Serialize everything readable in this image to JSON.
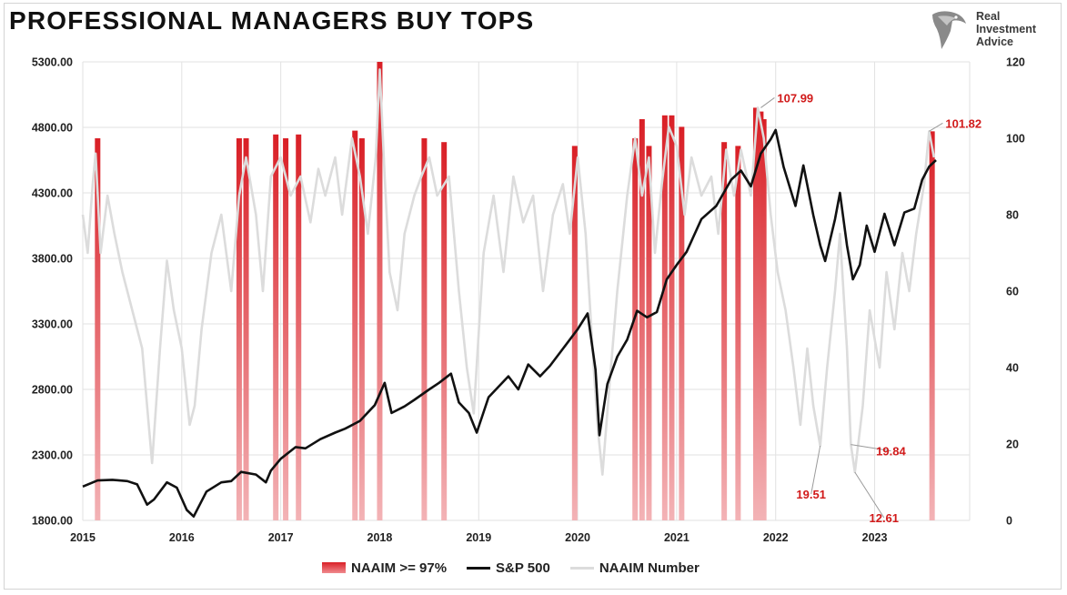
{
  "title": "PROFESSIONAL MANAGERS BUY TOPS",
  "logo": {
    "line1": "Real",
    "line2": "Investment",
    "line3": "Advice"
  },
  "colors": {
    "sp500": "#111111",
    "naaim": "#dcdcdc",
    "highlight": "#e0343a",
    "annotation": "#d11a1a",
    "grid": "#e2e2e2"
  },
  "chart_data": {
    "type": "line",
    "title": "PROFESSIONAL MANAGERS BUY TOPS",
    "x_ticks": [
      "2015",
      "2016",
      "2017",
      "2018",
      "2019",
      "2020",
      "2021",
      "2022",
      "2023"
    ],
    "xlim": [
      "2015-01",
      "2023-12"
    ],
    "left_axis": {
      "ylim": [
        1800,
        5300
      ],
      "ticks": [
        "5300.00",
        "4800.00",
        "4300.00",
        "3800.00",
        "3300.00",
        "2800.00",
        "2300.00",
        "1800.00"
      ]
    },
    "right_axis": {
      "ylim": [
        0,
        120
      ],
      "ticks": [
        "120",
        "100",
        "80",
        "60",
        "40",
        "20",
        "0"
      ]
    },
    "grid": true,
    "legend_position": "bottom",
    "series": [
      {
        "name": "S&P 500",
        "axis": "left",
        "points": [
          [
            2015.0,
            2058
          ],
          [
            2015.15,
            2105
          ],
          [
            2015.3,
            2110
          ],
          [
            2015.45,
            2100
          ],
          [
            2015.55,
            2075
          ],
          [
            2015.65,
            1920
          ],
          [
            2015.72,
            1960
          ],
          [
            2015.85,
            2090
          ],
          [
            2015.95,
            2050
          ],
          [
            2016.05,
            1880
          ],
          [
            2016.12,
            1830
          ],
          [
            2016.25,
            2020
          ],
          [
            2016.4,
            2090
          ],
          [
            2016.5,
            2100
          ],
          [
            2016.6,
            2170
          ],
          [
            2016.75,
            2150
          ],
          [
            2016.85,
            2090
          ],
          [
            2016.9,
            2180
          ],
          [
            2017.0,
            2270
          ],
          [
            2017.15,
            2360
          ],
          [
            2017.25,
            2350
          ],
          [
            2017.4,
            2420
          ],
          [
            2017.55,
            2470
          ],
          [
            2017.65,
            2500
          ],
          [
            2017.8,
            2560
          ],
          [
            2017.95,
            2680
          ],
          [
            2018.05,
            2850
          ],
          [
            2018.12,
            2620
          ],
          [
            2018.25,
            2670
          ],
          [
            2018.35,
            2720
          ],
          [
            2018.5,
            2800
          ],
          [
            2018.6,
            2850
          ],
          [
            2018.72,
            2920
          ],
          [
            2018.8,
            2700
          ],
          [
            2018.9,
            2620
          ],
          [
            2018.98,
            2470
          ],
          [
            2019.1,
            2740
          ],
          [
            2019.3,
            2900
          ],
          [
            2019.4,
            2800
          ],
          [
            2019.5,
            2990
          ],
          [
            2019.62,
            2900
          ],
          [
            2019.72,
            2980
          ],
          [
            2019.85,
            3110
          ],
          [
            2020.0,
            3260
          ],
          [
            2020.1,
            3380
          ],
          [
            2020.18,
            2950
          ],
          [
            2020.22,
            2450
          ],
          [
            2020.3,
            2840
          ],
          [
            2020.4,
            3050
          ],
          [
            2020.5,
            3180
          ],
          [
            2020.6,
            3400
          ],
          [
            2020.7,
            3350
          ],
          [
            2020.8,
            3390
          ],
          [
            2020.9,
            3640
          ],
          [
            2021.0,
            3750
          ],
          [
            2021.1,
            3850
          ],
          [
            2021.25,
            4100
          ],
          [
            2021.4,
            4200
          ],
          [
            2021.55,
            4400
          ],
          [
            2021.65,
            4470
          ],
          [
            2021.75,
            4350
          ],
          [
            2021.85,
            4600
          ],
          [
            2021.95,
            4710
          ],
          [
            2022.0,
            4780
          ],
          [
            2022.08,
            4500
          ],
          [
            2022.2,
            4200
          ],
          [
            2022.28,
            4510
          ],
          [
            2022.38,
            4130
          ],
          [
            2022.45,
            3900
          ],
          [
            2022.5,
            3780
          ],
          [
            2022.6,
            4100
          ],
          [
            2022.65,
            4300
          ],
          [
            2022.72,
            3900
          ],
          [
            2022.78,
            3640
          ],
          [
            2022.85,
            3750
          ],
          [
            2022.92,
            4050
          ],
          [
            2023.0,
            3850
          ],
          [
            2023.1,
            4140
          ],
          [
            2023.2,
            3900
          ],
          [
            2023.3,
            4150
          ],
          [
            2023.4,
            4180
          ],
          [
            2023.48,
            4400
          ],
          [
            2023.55,
            4500
          ],
          [
            2023.62,
            4550
          ]
        ]
      },
      {
        "name": "NAAIM Number",
        "axis": "right",
        "points": [
          [
            2015.0,
            80
          ],
          [
            2015.05,
            70
          ],
          [
            2015.1,
            88
          ],
          [
            2015.13,
            96
          ],
          [
            2015.18,
            70
          ],
          [
            2015.25,
            85
          ],
          [
            2015.32,
            75
          ],
          [
            2015.4,
            65
          ],
          [
            2015.5,
            55
          ],
          [
            2015.6,
            45
          ],
          [
            2015.65,
            30
          ],
          [
            2015.7,
            15
          ],
          [
            2015.78,
            45
          ],
          [
            2015.85,
            68
          ],
          [
            2015.92,
            55
          ],
          [
            2016.0,
            45
          ],
          [
            2016.08,
            25
          ],
          [
            2016.13,
            30
          ],
          [
            2016.2,
            50
          ],
          [
            2016.3,
            70
          ],
          [
            2016.4,
            80
          ],
          [
            2016.5,
            60
          ],
          [
            2016.58,
            85
          ],
          [
            2016.65,
            95
          ],
          [
            2016.75,
            80
          ],
          [
            2016.82,
            60
          ],
          [
            2016.9,
            90
          ],
          [
            2017.0,
            95
          ],
          [
            2017.1,
            85
          ],
          [
            2017.2,
            90
          ],
          [
            2017.3,
            78
          ],
          [
            2017.38,
            92
          ],
          [
            2017.45,
            85
          ],
          [
            2017.55,
            95
          ],
          [
            2017.62,
            80
          ],
          [
            2017.72,
            100
          ],
          [
            2017.8,
            90
          ],
          [
            2017.88,
            75
          ],
          [
            2017.96,
            95
          ],
          [
            2018.0,
            118
          ],
          [
            2018.05,
            90
          ],
          [
            2018.1,
            65
          ],
          [
            2018.18,
            55
          ],
          [
            2018.25,
            75
          ],
          [
            2018.35,
            85
          ],
          [
            2018.42,
            90
          ],
          [
            2018.5,
            95
          ],
          [
            2018.58,
            85
          ],
          [
            2018.7,
            90
          ],
          [
            2018.8,
            60
          ],
          [
            2018.88,
            40
          ],
          [
            2018.95,
            28
          ],
          [
            2019.05,
            70
          ],
          [
            2019.15,
            85
          ],
          [
            2019.25,
            65
          ],
          [
            2019.35,
            90
          ],
          [
            2019.45,
            78
          ],
          [
            2019.55,
            85
          ],
          [
            2019.65,
            60
          ],
          [
            2019.75,
            80
          ],
          [
            2019.85,
            88
          ],
          [
            2019.92,
            75
          ],
          [
            2020.0,
            95
          ],
          [
            2020.08,
            75
          ],
          [
            2020.15,
            45
          ],
          [
            2020.2,
            25
          ],
          [
            2020.25,
            12
          ],
          [
            2020.32,
            35
          ],
          [
            2020.4,
            60
          ],
          [
            2020.5,
            85
          ],
          [
            2020.58,
            100
          ],
          [
            2020.65,
            85
          ],
          [
            2020.72,
            95
          ],
          [
            2020.78,
            70
          ],
          [
            2020.85,
            88
          ],
          [
            2020.92,
            103
          ],
          [
            2021.0,
            98
          ],
          [
            2021.08,
            80
          ],
          [
            2021.15,
            95
          ],
          [
            2021.25,
            85
          ],
          [
            2021.35,
            90
          ],
          [
            2021.42,
            75
          ],
          [
            2021.5,
            97
          ],
          [
            2021.58,
            85
          ],
          [
            2021.65,
            97
          ],
          [
            2021.75,
            85
          ],
          [
            2021.82,
            108
          ],
          [
            2021.88,
            100
          ],
          [
            2021.95,
            80
          ],
          [
            2022.02,
            65
          ],
          [
            2022.1,
            55
          ],
          [
            2022.18,
            40
          ],
          [
            2022.25,
            25
          ],
          [
            2022.32,
            45
          ],
          [
            2022.38,
            30
          ],
          [
            2022.45,
            19.5
          ],
          [
            2022.52,
            40
          ],
          [
            2022.6,
            60
          ],
          [
            2022.65,
            75
          ],
          [
            2022.72,
            45
          ],
          [
            2022.76,
            19.84
          ],
          [
            2022.8,
            12.61
          ],
          [
            2022.88,
            30
          ],
          [
            2022.95,
            55
          ],
          [
            2023.05,
            40
          ],
          [
            2023.12,
            65
          ],
          [
            2023.2,
            50
          ],
          [
            2023.28,
            70
          ],
          [
            2023.35,
            60
          ],
          [
            2023.42,
            75
          ],
          [
            2023.5,
            88
          ],
          [
            2023.55,
            101.82
          ],
          [
            2023.6,
            95
          ]
        ]
      },
      {
        "name": "NAAIM >= 97%",
        "axis": "right",
        "type": "area",
        "spikes": [
          [
            2015.15,
            100
          ],
          [
            2016.58,
            100
          ],
          [
            2016.65,
            100
          ],
          [
            2016.95,
            101
          ],
          [
            2017.05,
            100
          ],
          [
            2017.18,
            101
          ],
          [
            2017.75,
            102
          ],
          [
            2017.82,
            100
          ],
          [
            2018.0,
            120
          ],
          [
            2018.45,
            100
          ],
          [
            2018.65,
            99
          ],
          [
            2019.97,
            98
          ],
          [
            2020.58,
            100
          ],
          [
            2020.65,
            105
          ],
          [
            2020.72,
            98
          ],
          [
            2020.88,
            106
          ],
          [
            2020.95,
            106
          ],
          [
            2021.05,
            103
          ],
          [
            2021.48,
            99
          ],
          [
            2021.62,
            98
          ],
          [
            2021.8,
            108
          ],
          [
            2021.85,
            107
          ],
          [
            2021.88,
            105
          ],
          [
            2023.58,
            101.82
          ]
        ]
      }
    ],
    "annotations": [
      {
        "text": "107.99",
        "x": 2021.85,
        "y": 107.99
      },
      {
        "text": "101.82",
        "x": 2023.55,
        "y": 101.82
      },
      {
        "text": "19.51",
        "x": 2022.45,
        "y": 19.51
      },
      {
        "text": "19.84",
        "x": 2022.76,
        "y": 19.84
      },
      {
        "text": "12.61",
        "x": 2022.8,
        "y": 12.61
      }
    ]
  },
  "legend": [
    {
      "label": "NAAIM >= 97%",
      "swatch": "area"
    },
    {
      "label": "S&P 500",
      "swatch": "black-line"
    },
    {
      "label": "NAAIM Number",
      "swatch": "grey-line"
    }
  ]
}
